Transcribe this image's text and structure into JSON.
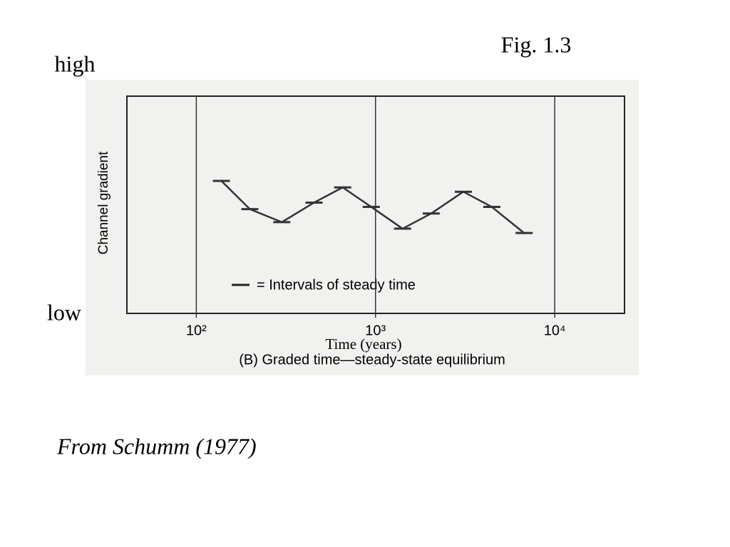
{
  "slide": {
    "fig_label": "Fig. 1.3",
    "high": "high",
    "low": "low",
    "source": "From Schumm (1977)"
  },
  "chart_data": {
    "type": "line",
    "title": "(B) Graded time—steady-state equilibrium",
    "x_label": "Time (years)",
    "y_label": "Channel gradient",
    "legend_label": "= Intervals of steady time",
    "x": [
      138,
      199,
      300,
      454,
      656,
      947,
      1416,
      2046,
      3090,
      4457,
      6745
    ],
    "values": [
      0.61,
      0.48,
      0.42,
      0.51,
      0.58,
      0.49,
      0.39,
      0.46,
      0.56,
      0.49,
      0.37
    ],
    "color": "#333333",
    "x_scale": "log",
    "grid": true,
    "xlim": [
      41,
      24500
    ],
    "ylim": [
      0,
      1
    ],
    "xticks": [
      {
        "value": 100,
        "label": "10²"
      },
      {
        "value": 1000,
        "label": "10³"
      },
      {
        "value": 10000,
        "label": "10⁴"
      }
    ]
  }
}
